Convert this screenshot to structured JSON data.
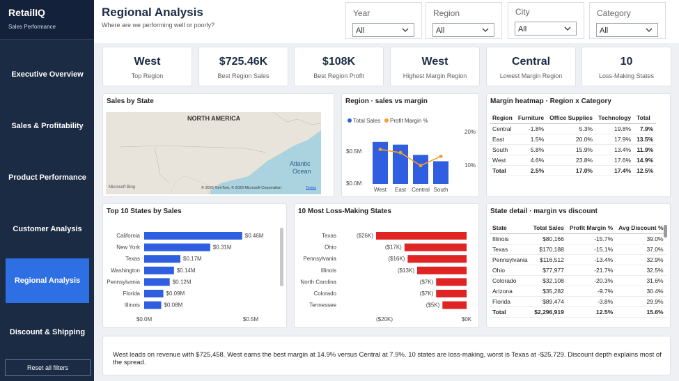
{
  "brand": {
    "title": "RetailIQ",
    "subtitle": "Sales Performance"
  },
  "nav": [
    {
      "label": "Executive Overview",
      "active": false
    },
    {
      "label": "Sales & Profitability",
      "active": false
    },
    {
      "label": "Product Performance",
      "active": false
    },
    {
      "label": "Customer Analysis",
      "active": false
    },
    {
      "label": "Regional Analysis",
      "active": true
    },
    {
      "label": "Discount & Shipping",
      "active": false
    }
  ],
  "reset_label": "Reset all filters",
  "header": {
    "title": "Regional Analysis",
    "subtitle": "Where are we performing well or poorly?"
  },
  "slicers": [
    {
      "label": "Year",
      "value": "All"
    },
    {
      "label": "Region",
      "value": "All"
    },
    {
      "label": "City",
      "value": "All"
    },
    {
      "label": "Category",
      "value": "All"
    }
  ],
  "kpis": [
    {
      "value": "West",
      "label": "Top Region"
    },
    {
      "value": "$725.46K",
      "label": "Best Region Sales"
    },
    {
      "value": "$108K",
      "label": "Best Region Profit"
    },
    {
      "value": "West",
      "label": "Highest Margin Region"
    },
    {
      "value": "Central",
      "label": "Lowest Margin Region"
    },
    {
      "value": "10",
      "label": "Loss-Making States"
    }
  ],
  "map": {
    "title": "Sales by State",
    "continent_label": "NORTH AMERICA",
    "ocean_label_1": "Atlantic",
    "ocean_label_2": "Ocean",
    "bing_label": "Microsoft Bing",
    "copyright": "© 2026 TomTom, © 2026 Microsoft Corporation",
    "terms": "Terms"
  },
  "region_chart": {
    "title": "Region · sales vs margin",
    "legend_sales": "Total Sales",
    "legend_margin": "Profit Margin %",
    "y_left_ticks": [
      "$0.5M",
      "$0.0M"
    ],
    "y_right_ticks": [
      "20%",
      "10%"
    ],
    "bar_color": "#2f5fe0",
    "line_color": "#f59e2c"
  },
  "heatmap": {
    "title": "Margin heatmap · Region x Category",
    "columns": [
      "Region",
      "Furniture",
      "Office Supplies",
      "Technology",
      "Total"
    ],
    "rows": [
      [
        "Central",
        "-1.8%",
        "5.3%",
        "19.8%",
        "7.9%"
      ],
      [
        "East",
        "1.5%",
        "20.0%",
        "17.9%",
        "13.5%"
      ],
      [
        "South",
        "5.8%",
        "15.9%",
        "13.4%",
        "11.9%"
      ],
      [
        "West",
        "4.6%",
        "23.8%",
        "17.6%",
        "14.9%"
      ]
    ],
    "total_row": [
      "Total",
      "2.5%",
      "17.0%",
      "17.4%",
      "12.5%"
    ]
  },
  "top_states": {
    "title": "Top 10 States by Sales",
    "x_ticks": [
      "$0.0M",
      "$0.5M"
    ],
    "bar_color": "#2f5fe0"
  },
  "loss_states": {
    "title": "10 Most Loss-Making States",
    "x_ticks": [
      "($20K)",
      "$0K"
    ],
    "bar_color": "#e02424"
  },
  "state_detail": {
    "title": "State detail · margin vs discount",
    "columns": [
      "State",
      "Total Sales",
      "Profit Margin %",
      "Avg Discount %"
    ],
    "rows": [
      [
        "Illinois",
        "$80,166",
        "-15.7%",
        "39.0%"
      ],
      [
        "Texas",
        "$170,188",
        "-15.1%",
        "37.0%"
      ],
      [
        "Pennsylvania",
        "$116,512",
        "-13.4%",
        "32.9%"
      ],
      [
        "Ohio",
        "$77,977",
        "-21.7%",
        "32.5%"
      ],
      [
        "Colorado",
        "$32,108",
        "-20.3%",
        "31.6%"
      ],
      [
        "Arizona",
        "$35,282",
        "-9.7%",
        "30.4%"
      ],
      [
        "Florida",
        "$89,474",
        "-3.8%",
        "29.9%"
      ]
    ],
    "total_row": [
      "Total",
      "$2,296,919",
      "12.5%",
      "15.6%"
    ]
  },
  "summary": "West leads on revenue with $725,458. West earns the best margin at 14.9% versus Central at 7.9%. 10 states are loss-making, worst is Texas at -$25,729. Discount depth explains most of the spread.",
  "chart_data": [
    {
      "type": "bar",
      "title": "Region · sales vs margin",
      "categories": [
        "West",
        "East",
        "Central",
        "South"
      ],
      "series": [
        {
          "name": "Total Sales",
          "values": [
            725458,
            678781,
            501240,
            391722
          ]
        },
        {
          "name": "Profit Margin %",
          "values": [
            14.9,
            13.5,
            7.9,
            11.9
          ]
        }
      ],
      "ylim": [
        0,
        1000000
      ],
      "y2lim": [
        0,
        25
      ]
    },
    {
      "type": "bar",
      "title": "Top 10 States by Sales",
      "categories": [
        "California",
        "New York",
        "Texas",
        "Washington",
        "Pennsylvania",
        "Florida",
        "Illinois"
      ],
      "values": [
        0.46,
        0.31,
        0.17,
        0.14,
        0.12,
        0.09,
        0.08
      ],
      "labels": [
        "$0.46M",
        "$0.31M",
        "$0.17M",
        "$0.14M",
        "$0.12M",
        "$0.09M",
        "$0.08M"
      ],
      "xlim": [
        0,
        0.5
      ]
    },
    {
      "type": "bar",
      "title": "10 Most Loss-Making States",
      "categories": [
        "Texas",
        "Ohio",
        "Pennsylvania",
        "Illinois",
        "North Carolina",
        "Colorado",
        "Tennessee"
      ],
      "values": [
        -26,
        -17,
        -16,
        -13,
        -7,
        -7,
        -5
      ],
      "labels": [
        "($26K)",
        "($17K)",
        "($16K)",
        "($13K)",
        "($7K)",
        "($7K)",
        "($5K)"
      ],
      "xlim": [
        -26,
        0
      ]
    }
  ]
}
